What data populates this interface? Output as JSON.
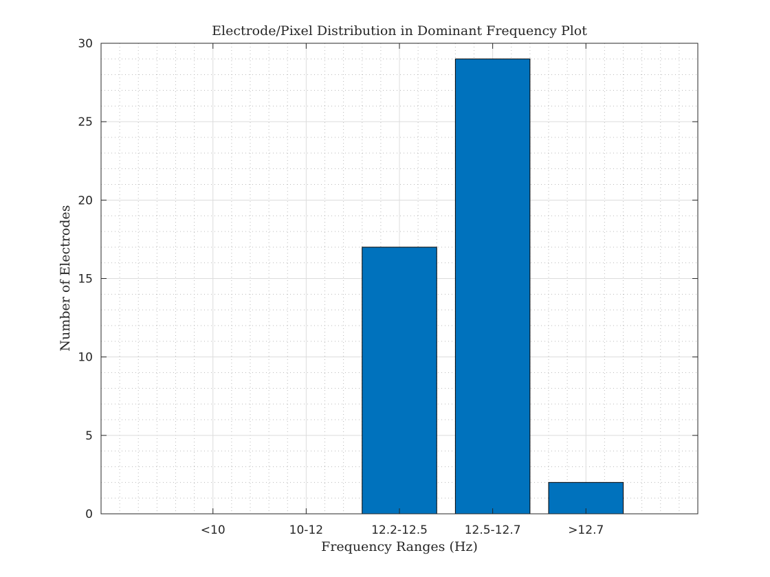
{
  "chart_data": {
    "type": "bar",
    "title": "Electrode/Pixel Distribution in Dominant Frequency Plot",
    "xlabel": "Frequency Ranges (Hz)",
    "ylabel": "Number of Electrodes",
    "categories": [
      "<10",
      "10-12",
      "12.2-12.5",
      "12.5-12.7",
      ">12.7"
    ],
    "values": [
      0,
      0,
      17,
      29,
      2
    ],
    "ylim": [
      0,
      30
    ],
    "yticks": [
      "0",
      "5",
      "10",
      "15",
      "20",
      "25",
      "30"
    ],
    "grid": "on (major and minor)",
    "bar_color": "#0072BD"
  }
}
